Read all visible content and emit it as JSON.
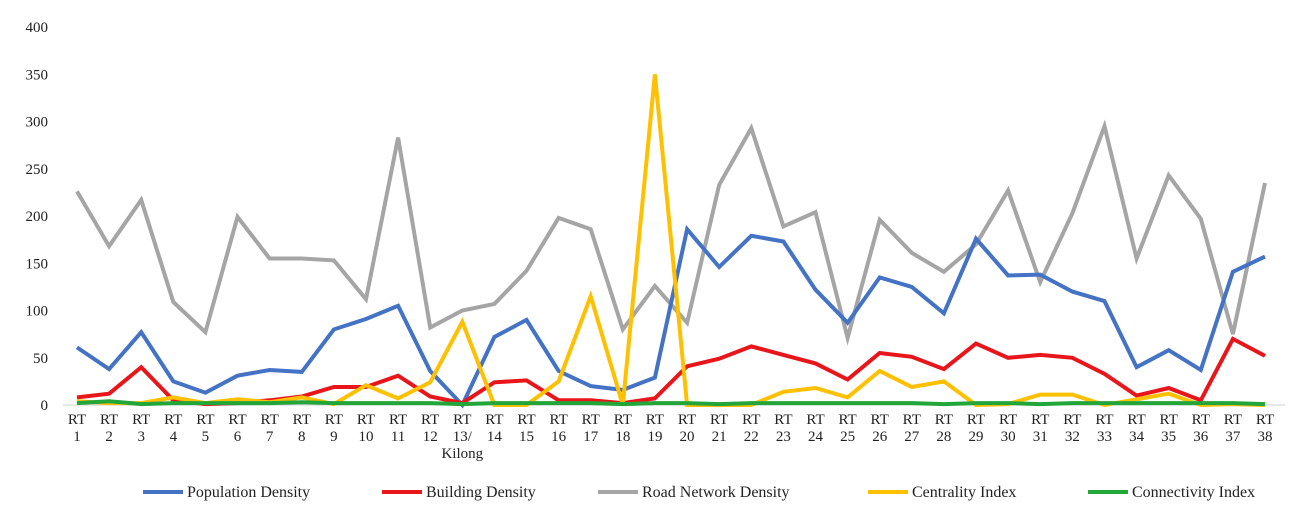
{
  "chart_data": {
    "type": "line",
    "title": "",
    "xlabel": "",
    "ylabel": "",
    "ylim": [
      0,
      400
    ],
    "yticks": [
      0,
      50,
      100,
      150,
      200,
      250,
      300,
      350,
      400
    ],
    "grid": false,
    "legend_position": "bottom",
    "categories": [
      [
        "RT",
        "1"
      ],
      [
        "RT",
        "2"
      ],
      [
        "RT",
        "3"
      ],
      [
        "RT",
        "4"
      ],
      [
        "RT",
        "5"
      ],
      [
        "RT",
        "6"
      ],
      [
        "RT",
        "7"
      ],
      [
        "RT",
        "8"
      ],
      [
        "RT",
        "9"
      ],
      [
        "RT",
        "10"
      ],
      [
        "RT",
        "11"
      ],
      [
        "RT",
        "12"
      ],
      [
        "RT",
        "13/",
        "Kilong"
      ],
      [
        "RT",
        "14"
      ],
      [
        "RT",
        "15"
      ],
      [
        "RT",
        "16"
      ],
      [
        "RT",
        "17"
      ],
      [
        "RT",
        "18"
      ],
      [
        "RT",
        "19"
      ],
      [
        "RT",
        "20"
      ],
      [
        "RT",
        "21"
      ],
      [
        "RT",
        "22"
      ],
      [
        "RT",
        "23"
      ],
      [
        "RT",
        "24"
      ],
      [
        "RT",
        "25"
      ],
      [
        "RT",
        "26"
      ],
      [
        "RT",
        "27"
      ],
      [
        "RT",
        "28"
      ],
      [
        "RT",
        "29"
      ],
      [
        "RT",
        "30"
      ],
      [
        "RT",
        "31"
      ],
      [
        "RT",
        "32"
      ],
      [
        "RT",
        "33"
      ],
      [
        "RT",
        "34"
      ],
      [
        "RT",
        "35"
      ],
      [
        "RT",
        "36"
      ],
      [
        "RT",
        "37"
      ],
      [
        "RT",
        "38"
      ]
    ],
    "series": [
      {
        "name": "Population Density",
        "color": "#4472C4",
        "values": [
          61,
          38,
          77,
          25,
          13,
          31,
          37,
          35,
          80,
          91,
          105,
          36,
          0,
          72,
          90,
          36,
          20,
          16,
          29,
          186,
          146,
          179,
          173,
          122,
          87,
          135,
          125,
          97,
          176,
          137,
          138,
          120,
          110,
          40,
          58,
          37,
          141,
          157
        ]
      },
      {
        "name": "Building Density",
        "color": "#E8161B",
        "values": [
          8,
          12,
          40,
          5,
          1,
          2,
          5,
          9,
          19,
          19,
          31,
          9,
          2,
          24,
          26,
          5,
          5,
          2,
          7,
          41,
          49,
          62,
          53,
          44,
          27,
          55,
          51,
          38,
          65,
          50,
          53,
          50,
          33,
          10,
          18,
          5,
          70,
          52
        ]
      },
      {
        "name": "Road Network Density",
        "color": "#A5A5A5",
        "values": [
          226,
          168,
          217,
          109,
          77,
          199,
          155,
          155,
          153,
          112,
          283,
          82,
          100,
          107,
          142,
          198,
          186,
          80,
          126,
          87,
          233,
          293,
          189,
          204,
          71,
          196,
          161,
          141,
          170,
          227,
          130,
          203,
          295,
          155,
          243,
          197,
          75,
          235
        ]
      },
      {
        "name": "Centrality Index",
        "color": "#FFC000",
        "values": [
          4,
          2,
          2,
          8,
          2,
          6,
          3,
          8,
          1,
          21,
          7,
          24,
          88,
          0,
          0,
          25,
          115,
          0,
          350,
          0,
          0,
          0,
          14,
          18,
          8,
          36,
          19,
          25,
          0,
          1,
          11,
          11,
          0,
          6,
          12,
          0,
          1,
          0
        ]
      },
      {
        "name": "Connectivity Index",
        "color": "#22A63A",
        "values": [
          2,
          4,
          1,
          2,
          2,
          2,
          2,
          3,
          2,
          2,
          2,
          2,
          1,
          2,
          2,
          2,
          2,
          1,
          2,
          2,
          1,
          2,
          2,
          2,
          2,
          2,
          2,
          1,
          2,
          2,
          1,
          2,
          2,
          2,
          2,
          2,
          2,
          1
        ]
      }
    ]
  }
}
